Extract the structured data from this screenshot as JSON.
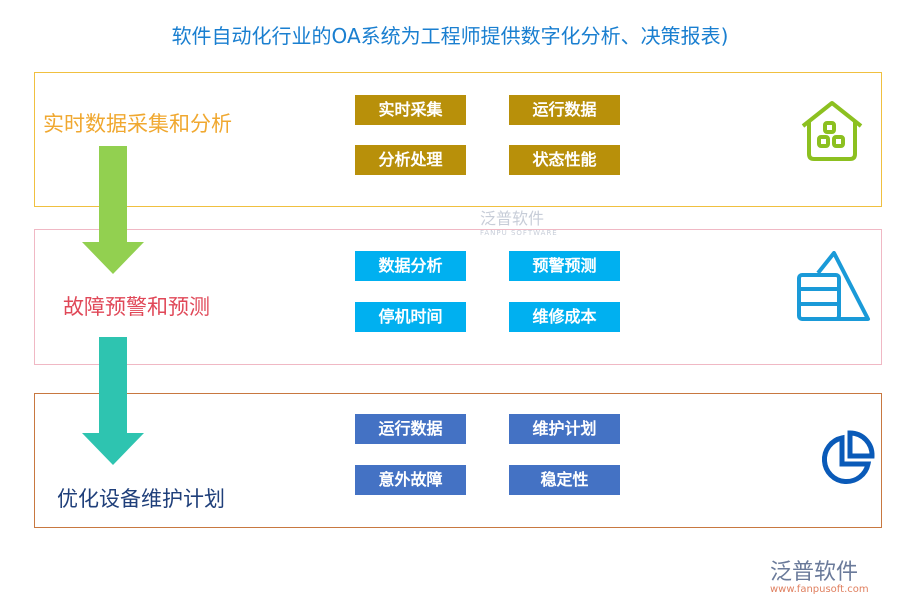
{
  "title": "软件自动化行业的OA系统为工程师提供数字化分析、决策报表)",
  "sections": [
    {
      "label": "实时数据采集和分析",
      "items": [
        "实时采集",
        "运行数据",
        "分析处理",
        "状态性能"
      ],
      "icon": "house-icon",
      "border": "#f0c040",
      "text": "#f0a830",
      "btn": "#b8900a"
    },
    {
      "label": "故障预警和预测",
      "items": [
        "数据分析",
        "预警预测",
        "停机时间",
        "维修成本"
      ],
      "icon": "pyramid-chart-icon",
      "border": "#f0b8c4",
      "text": "#e04858",
      "btn": "#00b0f0"
    },
    {
      "label": "优化设备维护计划",
      "items": [
        "运行数据",
        "维护计划",
        "意外故障",
        "稳定性"
      ],
      "icon": "pie-chart-icon",
      "border": "#c87840",
      "text": "#1f3f7a",
      "btn": "#4472c4"
    }
  ],
  "watermark": {
    "name": "泛普软件",
    "sub": "FANPU SOFTWARE"
  },
  "logo": {
    "name": "泛普软件",
    "url": "www.fanpusoft.com"
  }
}
